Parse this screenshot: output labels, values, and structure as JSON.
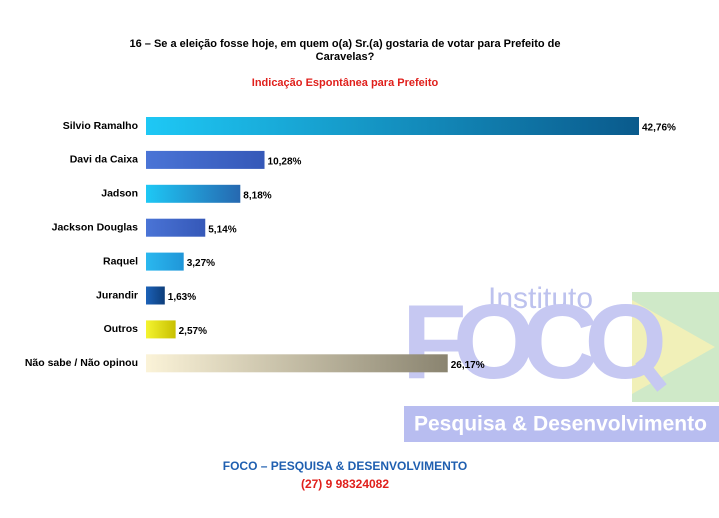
{
  "chart_data": {
    "type": "bar",
    "title": "16 – Se a eleição fosse hoje, em quem o(a) Sr.(a) gostaria de votar para Prefeito de",
    "title_line2": "Caravelas?",
    "subtitle": "Indicação Espontânea para Prefeito",
    "categories": [
      "Silvio Ramalho",
      "Davi da Caixa",
      "Jadson",
      "Jackson Douglas",
      "Raquel",
      "Jurandir",
      "Outros",
      "Não sabe / Não opinou"
    ],
    "values": [
      42.76,
      10.28,
      8.18,
      5.14,
      3.27,
      1.63,
      2.57,
      26.17
    ],
    "value_labels": [
      "42,76%",
      "10,28%",
      "8,18%",
      "5,14%",
      "3,27%",
      "1,63%",
      "2,57%",
      "26,17%"
    ],
    "colors": [
      [
        "#1ec8f5",
        "#0a5a8c"
      ],
      [
        "#4a74d6",
        "#3558b8"
      ],
      [
        "#1ec8f5",
        "#2668b0"
      ],
      [
        "#4a74d6",
        "#3558b8"
      ],
      [
        "#2ab8ef",
        "#2096d8"
      ],
      [
        "#1c62b8",
        "#0d3d7a"
      ],
      [
        "#f4f430",
        "#c8c000"
      ],
      [
        "#fbf3d8",
        "#8a8470"
      ]
    ],
    "watermark": {
      "line1": "Instituto",
      "line2": "FOCO",
      "line3": "Pesquisa & Desenvolvimento"
    },
    "footer": {
      "line1": "FOCO – PESQUISA & DESENVOLVIMENTO",
      "line2": "(27) 9 98324082"
    }
  }
}
